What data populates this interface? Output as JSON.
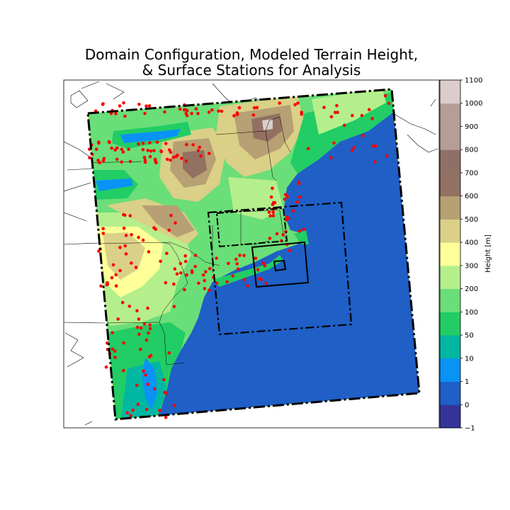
{
  "title": {
    "line1": "Domain Configuration, Modeled Terrain Height,",
    "line2": "& Surface Stations for Analysis"
  },
  "colorbar": {
    "label": "Height [m]",
    "ticks": [
      "−1",
      "0",
      "1",
      "10",
      "50",
      "100",
      "200",
      "300",
      "400",
      "500",
      "600",
      "700",
      "800",
      "900",
      "1000",
      "1100"
    ],
    "bins": [
      {
        "from": "−1",
        "to": "0",
        "color": "#333399"
      },
      {
        "from": "0",
        "to": "1",
        "color": "#1f5fc6"
      },
      {
        "from": "1",
        "to": "10",
        "color": "#0993f6"
      },
      {
        "from": "10",
        "to": "50",
        "color": "#00b7a2"
      },
      {
        "from": "50",
        "to": "100",
        "color": "#21cd64"
      },
      {
        "from": "100",
        "to": "200",
        "color": "#6ade78"
      },
      {
        "from": "200",
        "to": "300",
        "color": "#b4ef8c"
      },
      {
        "from": "300",
        "to": "400",
        "color": "#feff98"
      },
      {
        "from": "400",
        "to": "500",
        "color": "#dad087"
      },
      {
        "from": "500",
        "to": "600",
        "color": "#b6a074"
      },
      {
        "from": "600",
        "to": "700",
        "color": "#927062"
      },
      {
        "from": "700",
        "to": "800",
        "color": "#906f66"
      },
      {
        "from": "800",
        "to": "900",
        "color": "#b59d98"
      },
      {
        "from": "900",
        "to": "1000",
        "color": "#b59d98"
      },
      {
        "from": "1000",
        "to": "1100",
        "color": "#dacdcb"
      }
    ]
  },
  "colors": {
    "ocean": "#1f5fc6",
    "station": "#ff0000",
    "domain_border": "#000000"
  },
  "map_elements": {
    "outer_domain": "outer-domain-dashdot-border",
    "inner_domain_1": "inner-domain-1-dashdot-border",
    "inner_domain_2": "inner-domain-2-dashdot-border",
    "inner_domain_3": "inner-domain-3-solid-border",
    "inner_domain_4": "inner-domain-4-solid-border",
    "station_marker": "surface-station-marker"
  }
}
